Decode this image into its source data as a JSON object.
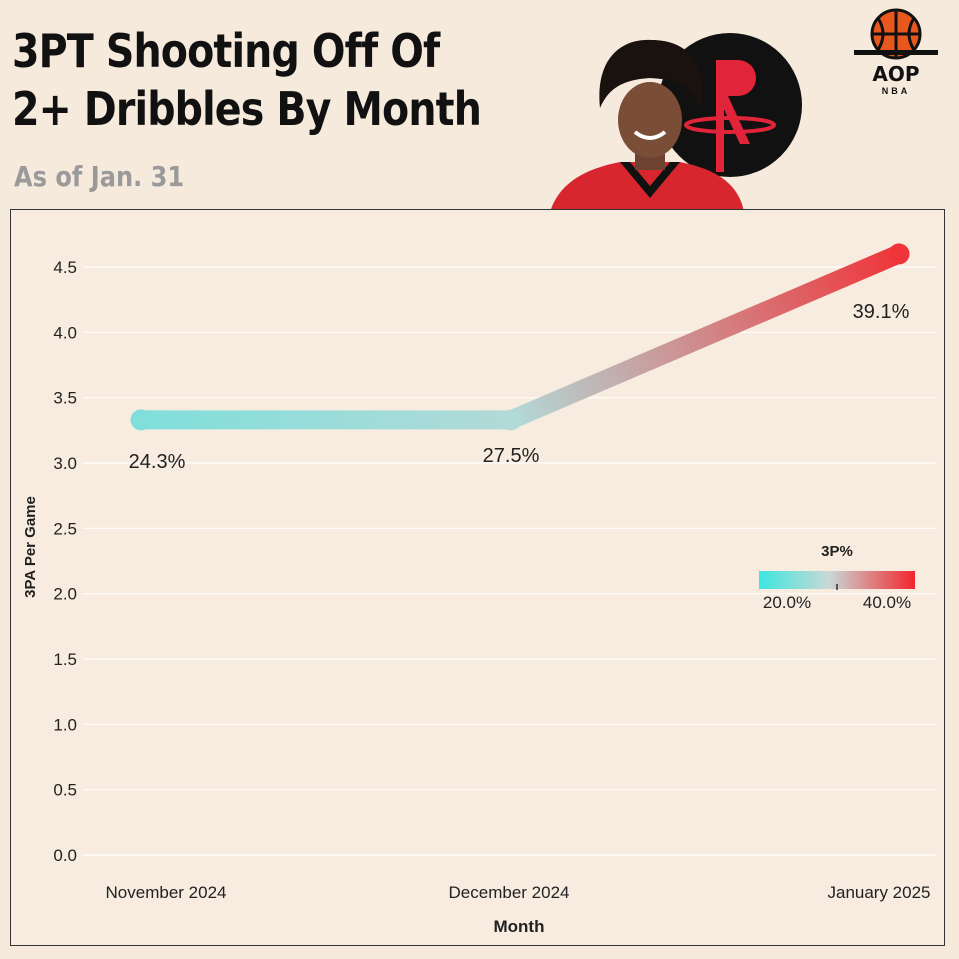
{
  "header": {
    "title_line1": "3PT Shooting Off Of",
    "title_line2": "2+ Dribbles By Month",
    "subtitle": "As of Jan. 31",
    "logo_text": "AOP",
    "logo_sub": "NBA"
  },
  "colors": {
    "background": "#f6eadc",
    "low": "#3ee6e0",
    "high": "#f2262c"
  },
  "chart_data": {
    "type": "line",
    "title": "3PT Shooting Off Of 2+ Dribbles By Month",
    "xlabel": "Month",
    "ylabel": "3PA Per Game",
    "categories": [
      "November 2024",
      "December 2024",
      "January 2025"
    ],
    "series": [
      {
        "values": [
          3.33,
          3.33,
          4.6
        ],
        "labels": [
          "24.3%",
          "27.5%",
          "39.1%"
        ],
        "color_values": [
          24.3,
          27.5,
          39.1
        ]
      }
    ],
    "ylim": [
      0,
      4.8
    ],
    "yticks": [
      "0.0",
      "0.5",
      "1.0",
      "1.5",
      "2.0",
      "2.5",
      "3.0",
      "3.5",
      "4.0",
      "4.5"
    ],
    "grid": true,
    "legend": {
      "title": "3P%",
      "min_label": "20.0%",
      "max_label": "40.0%",
      "range": [
        20,
        40
      ],
      "placement": "right"
    }
  }
}
